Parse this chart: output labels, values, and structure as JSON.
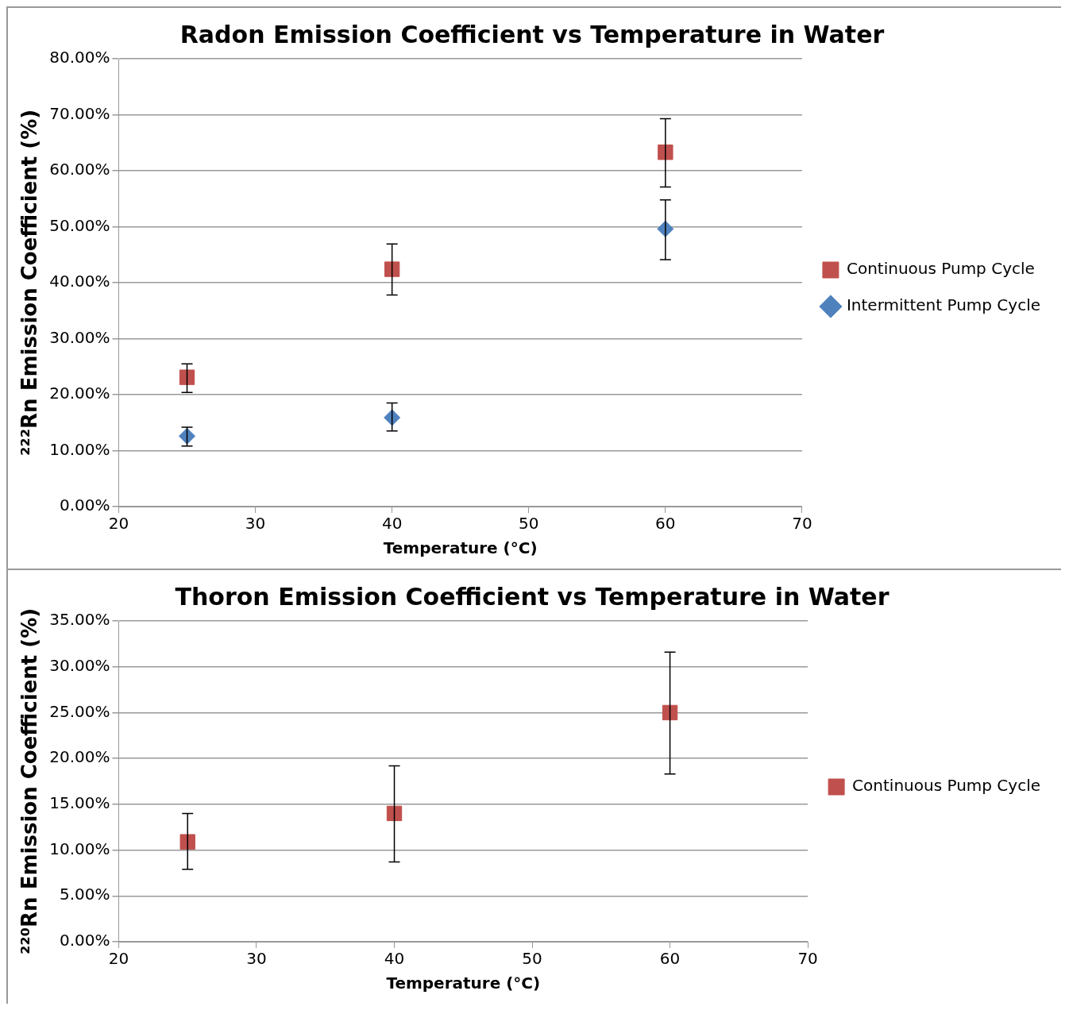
{
  "chart_data": [
    {
      "type": "scatter",
      "title": "Radon Emission Coefficient vs Temperature in Water",
      "xlabel": "Temperature (°C)",
      "ylabel": "²²²Rn Emission Coefficient (%)",
      "x": [
        25,
        40,
        60
      ],
      "xlim": [
        20,
        70
      ],
      "xticks": [
        20,
        30,
        40,
        50,
        60,
        70
      ],
      "ylim": [
        0,
        80
      ],
      "yticks": [
        {
          "value": 0,
          "label": "0.00%"
        },
        {
          "value": 10,
          "label": "10.00%"
        },
        {
          "value": 20,
          "label": "20.00%"
        },
        {
          "value": 30,
          "label": "30.00%"
        },
        {
          "value": 40,
          "label": "40.00%"
        },
        {
          "value": 50,
          "label": "50.00%"
        },
        {
          "value": 60,
          "label": "60.00%"
        },
        {
          "value": 70,
          "label": "70.00%"
        },
        {
          "value": 80,
          "label": "80.00%"
        }
      ],
      "grid": "y",
      "legend": "right",
      "series": [
        {
          "name": "Continuous Pump Cycle",
          "color": "#c0504d",
          "marker": "square",
          "values": [
            23.1,
            42.4,
            63.3
          ],
          "errors": [
            [
              20.4,
              25.5
            ],
            [
              37.8,
              46.9
            ],
            [
              57.1,
              69.3
            ]
          ]
        },
        {
          "name": "Intermittent Pump Cycle",
          "color": "#4f81bd",
          "marker": "diamond",
          "values": [
            12.6,
            15.9,
            49.6
          ],
          "errors": [
            [
              10.8,
              14.2
            ],
            [
              13.5,
              18.5
            ],
            [
              44.1,
              54.8
            ]
          ]
        }
      ]
    },
    {
      "type": "scatter",
      "title": "Thoron Emission Coefficient vs Temperature in Water",
      "xlabel": "Temperature (°C)",
      "ylabel": "²²⁰Rn Emission Coefficient (%)",
      "x": [
        25,
        40,
        60
      ],
      "xlim": [
        20,
        70
      ],
      "xticks": [
        20,
        30,
        40,
        50,
        60,
        70
      ],
      "ylim": [
        0,
        35
      ],
      "yticks": [
        {
          "value": 0,
          "label": "0.00%"
        },
        {
          "value": 5,
          "label": "5.00%"
        },
        {
          "value": 10,
          "label": "10.00%"
        },
        {
          "value": 15,
          "label": "15.00%"
        },
        {
          "value": 20,
          "label": "20.00%"
        },
        {
          "value": 25,
          "label": "25.00%"
        },
        {
          "value": 30,
          "label": "30.00%"
        },
        {
          "value": 35,
          "label": "35.00%"
        }
      ],
      "grid": "y",
      "legend": "right",
      "series": [
        {
          "name": "Continuous Pump Cycle",
          "color": "#c0504d",
          "marker": "square",
          "values": [
            10.9,
            14.0,
            25.0
          ],
          "errors": [
            [
              7.9,
              14.0
            ],
            [
              8.7,
              19.2
            ],
            [
              18.3,
              31.6
            ]
          ]
        }
      ]
    }
  ]
}
